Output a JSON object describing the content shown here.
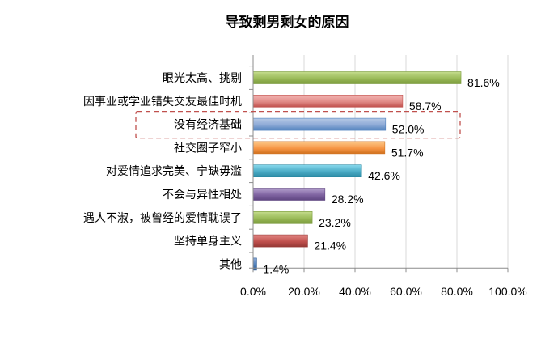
{
  "chart_data": {
    "type": "bar",
    "orientation": "horizontal",
    "title": "导致剩男剩女的原因",
    "xlabel": "",
    "ylabel": "",
    "xlim": [
      0,
      100
    ],
    "x_ticks": [
      "0.0%",
      "20.0%",
      "40.0%",
      "60.0%",
      "80.0%",
      "100.0%"
    ],
    "grid": true,
    "legend": "none",
    "categories": [
      "眼光太高、挑剔",
      "因事业或学业错失交友最佳时机",
      "没有经济基础",
      "社交圈子窄小",
      "对爱情追求完美、宁缺毋滥",
      "不会与异性相处",
      "遇人不淑，被曾经的爱情耽误了",
      "坚持单身主义",
      "其他"
    ],
    "values": [
      81.6,
      58.7,
      52.0,
      51.7,
      42.6,
      28.2,
      23.2,
      21.4,
      1.4
    ],
    "data_labels": [
      "81.6%",
      "58.7%",
      "52.0%",
      "51.7%",
      "42.6%",
      "28.2%",
      "23.2%",
      "21.4%",
      "1.4%"
    ],
    "bar_colors": [
      [
        "#c5dd8e",
        "#9bbb59",
        "#7a9a3c"
      ],
      [
        "#f3b7b5",
        "#e18b87",
        "#c0504d"
      ],
      [
        "#b7cae6",
        "#8eaad6",
        "#4f81bd"
      ],
      [
        "#fcc98a",
        "#f79646",
        "#d0711d"
      ],
      [
        "#87d8ec",
        "#4bacc6",
        "#2c8aa4"
      ],
      [
        "#b6a2cf",
        "#8064a2",
        "#5f4681"
      ],
      [
        "#c5dd8e",
        "#9bbb59",
        "#7a9a3c"
      ],
      [
        "#e48a87",
        "#c0504d",
        "#963835"
      ],
      [
        "#8eaad6",
        "#4f81bd",
        "#2d5c96"
      ]
    ],
    "highlighted_category_index": 2,
    "highlight_color": "#c0504d"
  }
}
